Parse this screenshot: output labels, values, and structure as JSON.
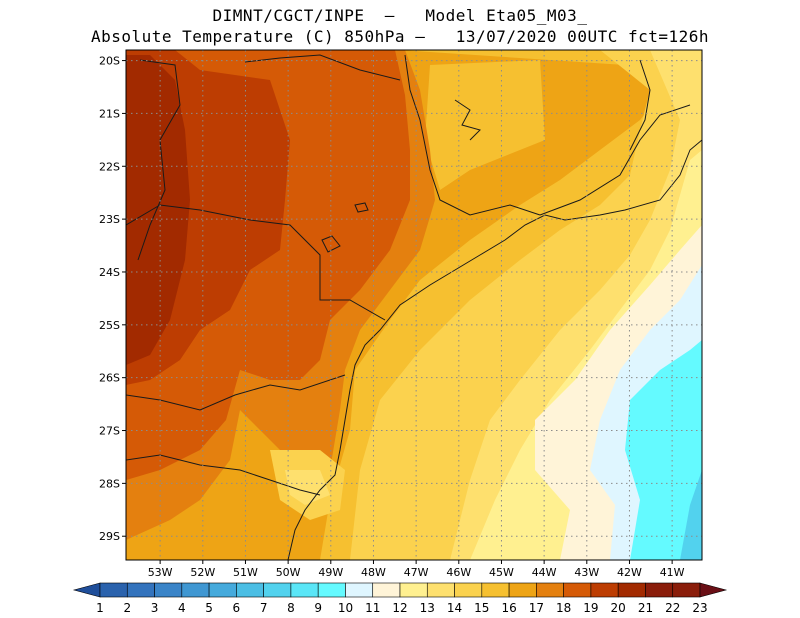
{
  "title": {
    "line1": "DIMNT/CGCT/INPE  –   Model Eta05_M03_",
    "line2": "Absolute Temperature (C) 850hPa –   13/07/2020 00UTC fct=126h"
  },
  "map": {
    "lon_range": [
      -53.8,
      -40.3
    ],
    "lat_range": [
      -29.45,
      -19.8
    ],
    "lon_ticks": [
      "53W",
      "52W",
      "51W",
      "50W",
      "49W",
      "48W",
      "47W",
      "46W",
      "45W",
      "44W",
      "43W",
      "42W",
      "41W"
    ],
    "lat_ticks": [
      "20S",
      "21S",
      "22S",
      "23S",
      "24S",
      "25S",
      "26S",
      "27S",
      "28S",
      "29S"
    ],
    "gridlines": true,
    "field": "Absolute Temperature 850hPa"
  },
  "colorbar": {
    "labels": [
      "1",
      "2",
      "3",
      "4",
      "5",
      "6",
      "7",
      "8",
      "9",
      "10",
      "11",
      "12",
      "13",
      "14",
      "15",
      "16",
      "17",
      "18",
      "19",
      "20",
      "21",
      "22",
      "23"
    ],
    "colors": [
      "#1f4e9a",
      "#2a62ad",
      "#3373bd",
      "#3a84c8",
      "#3f97d2",
      "#45aadc",
      "#4bbee4",
      "#52d2ee",
      "#5ae6f7",
      "#64faff",
      "#dff6ff",
      "#fff4d8",
      "#fff090",
      "#fee06e",
      "#fbd24e",
      "#f6c030",
      "#eea415",
      "#e4800f",
      "#d55a06",
      "#bd3d02",
      "#a22a00",
      "#8a1d0a",
      "#6a0f16"
    ],
    "units": "C"
  }
}
